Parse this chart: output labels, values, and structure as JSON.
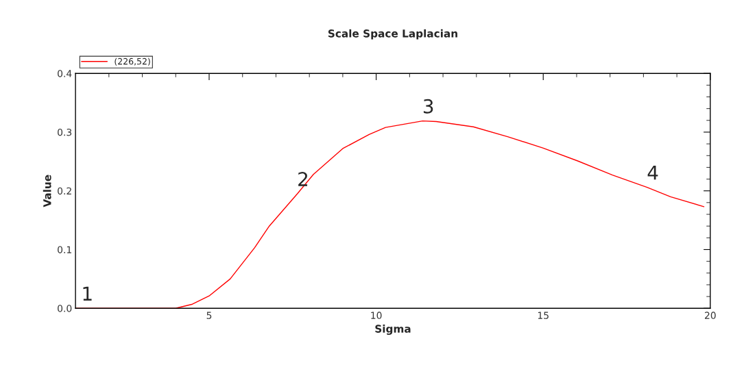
{
  "chart_data": {
    "type": "line",
    "title": "Scale Space Laplacian",
    "xlabel": "Sigma",
    "ylabel": "Value",
    "x": [
      1.0,
      4.0,
      4.5,
      5.0,
      5.63,
      6.36,
      6.8,
      7.64,
      8.12,
      9.0,
      9.79,
      10.28,
      11.39,
      11.8,
      12.91,
      13.95,
      14.99,
      16.03,
      17.07,
      18.11,
      18.81,
      19.81
    ],
    "series": [
      {
        "name": "(226,52)",
        "color": "#ff0000",
        "values": [
          0.0,
          0.0,
          0.007,
          0.021,
          0.05,
          0.103,
          0.14,
          0.195,
          0.228,
          0.272,
          0.296,
          0.308,
          0.319,
          0.318,
          0.309,
          0.292,
          0.273,
          0.251,
          0.227,
          0.206,
          0.19,
          0.173
        ]
      }
    ],
    "xlim": [
      1,
      20
    ],
    "xticks": [
      {
        "value": 2,
        "label": null
      },
      {
        "value": 3,
        "label": null
      },
      {
        "value": 4,
        "label": null
      },
      5,
      {
        "value": 6,
        "label": null
      },
      {
        "value": 7,
        "label": null
      },
      {
        "value": 8,
        "label": null
      },
      {
        "value": 9,
        "label": null
      },
      10,
      {
        "value": 11,
        "label": null
      },
      {
        "value": 12,
        "label": null
      },
      {
        "value": 13,
        "label": null
      },
      {
        "value": 14,
        "label": null
      },
      15,
      {
        "value": 16,
        "label": null
      },
      {
        "value": 17,
        "label": null
      },
      {
        "value": 18,
        "label": null
      },
      {
        "value": 19,
        "label": null
      },
      20
    ],
    "ylim": [
      0,
      0.4
    ],
    "yticks": [
      {
        "value": 0,
        "label": "0.0"
      },
      {
        "value": 0.02,
        "label": null
      },
      {
        "value": 0.04,
        "label": null
      },
      {
        "value": 0.06,
        "label": null
      },
      {
        "value": 0.08,
        "label": null
      },
      0.1,
      {
        "value": 0.12,
        "label": null
      },
      {
        "value": 0.14,
        "label": null
      },
      {
        "value": 0.16,
        "label": null
      },
      {
        "value": 0.18,
        "label": null
      },
      0.2,
      {
        "value": 0.22,
        "label": null
      },
      {
        "value": 0.24,
        "label": null
      },
      {
        "value": 0.26,
        "label": null
      },
      {
        "value": 0.28,
        "label": null
      },
      0.3,
      {
        "value": 0.32,
        "label": null
      },
      {
        "value": 0.34,
        "label": null
      },
      {
        "value": 0.36,
        "label": null
      },
      {
        "value": 0.38,
        "label": null
      },
      0.4
    ],
    "annotations": [
      {
        "text": "1",
        "x": 1.0,
        "y": 0.0
      },
      {
        "text": "2",
        "x": 7.64,
        "y": 0.195
      },
      {
        "text": "3",
        "x": 11.39,
        "y": 0.319
      },
      {
        "text": "4",
        "x": 18.11,
        "y": 0.206
      }
    ],
    "legend": "top left",
    "grid": false,
    "marker": "none",
    "line_style": "solid"
  }
}
